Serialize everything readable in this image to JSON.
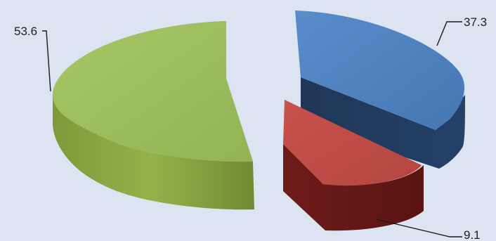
{
  "chart_data": {
    "type": "pie",
    "style": "3d-exploded",
    "values": [
      37.3,
      9.1,
      53.6
    ],
    "data_labels": [
      "37.3",
      "9.1",
      "53.6"
    ],
    "colors": {
      "slice_1": "#4f81bd",
      "slice_2": "#c0504d",
      "slice_3": "#9bbb59",
      "background": "#dce3f1"
    },
    "legend": "none",
    "title": ""
  }
}
